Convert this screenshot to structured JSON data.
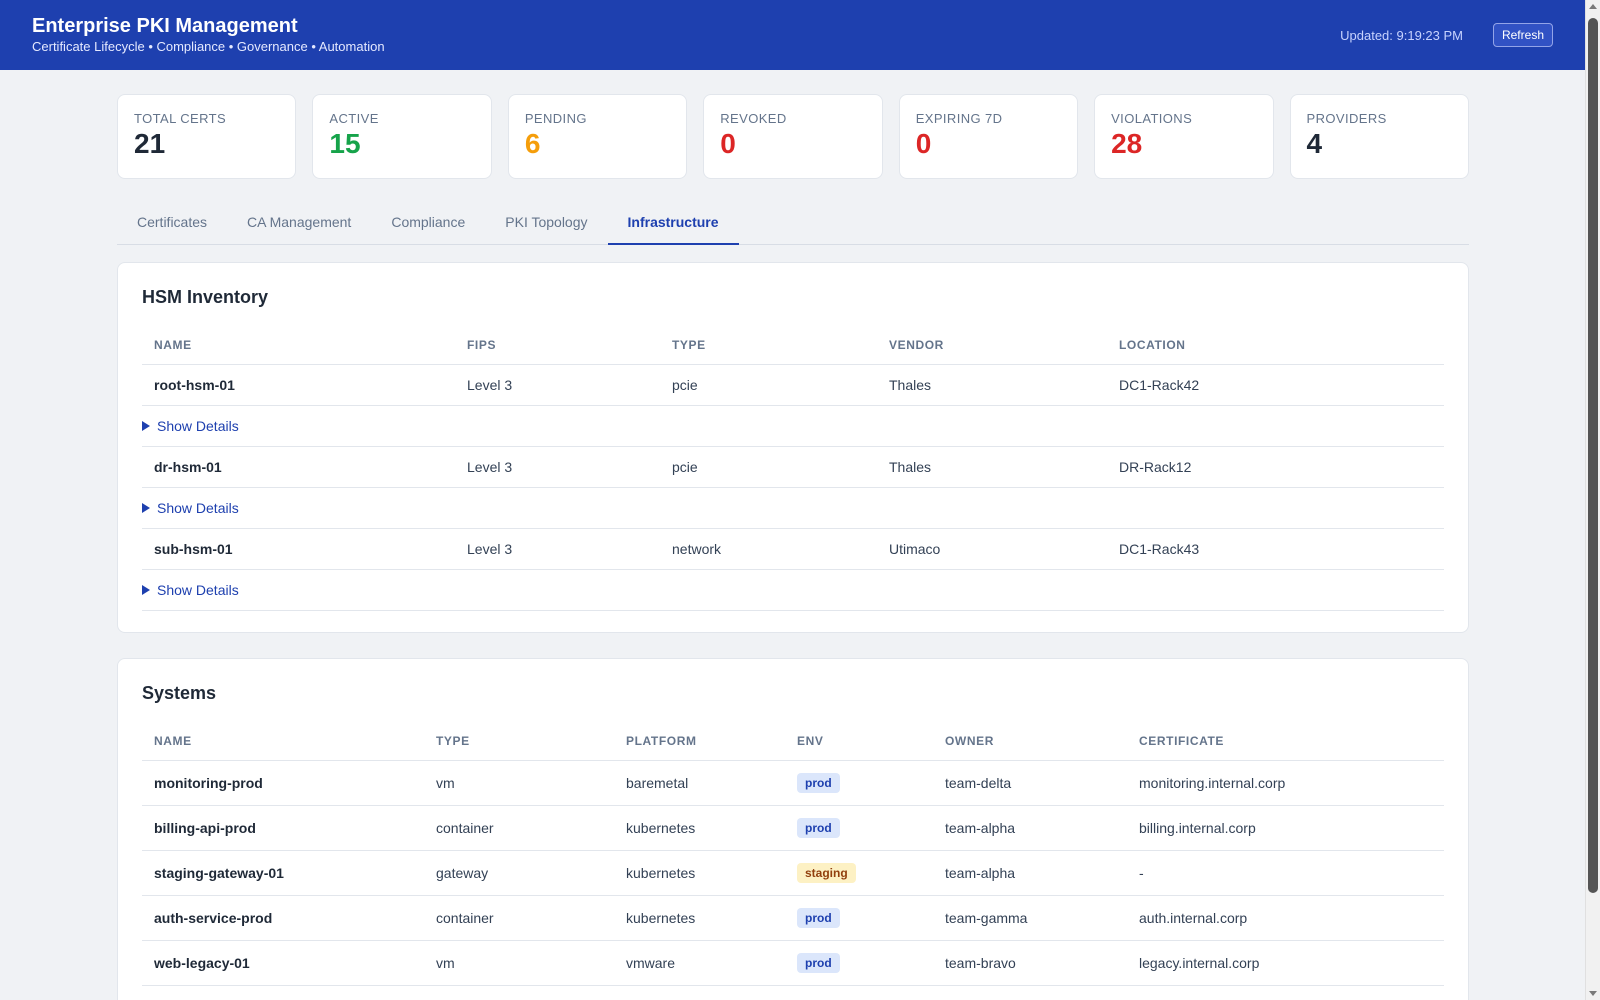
{
  "header": {
    "title": "Enterprise PKI Management",
    "subtitle": "Certificate Lifecycle • Compliance • Governance • Automation",
    "updated": "Updated: 9:19:23 PM",
    "refresh_label": "Refresh"
  },
  "stats": [
    {
      "label": "TOTAL CERTS",
      "value": "21",
      "color": "#1f2937"
    },
    {
      "label": "ACTIVE",
      "value": "15",
      "color": "#16a34a"
    },
    {
      "label": "PENDING",
      "value": "6",
      "color": "#f59e0b"
    },
    {
      "label": "REVOKED",
      "value": "0",
      "color": "#dc2626"
    },
    {
      "label": "EXPIRING 7D",
      "value": "0",
      "color": "#dc2626"
    },
    {
      "label": "VIOLATIONS",
      "value": "28",
      "color": "#dc2626"
    },
    {
      "label": "PROVIDERS",
      "value": "4",
      "color": "#1f2937"
    }
  ],
  "tabs": [
    {
      "label": "Certificates",
      "active": false
    },
    {
      "label": "CA Management",
      "active": false
    },
    {
      "label": "Compliance",
      "active": false
    },
    {
      "label": "PKI Topology",
      "active": false
    },
    {
      "label": "Infrastructure",
      "active": true
    }
  ],
  "hsm": {
    "title": "HSM Inventory",
    "columns": [
      "NAME",
      "FIPS",
      "TYPE",
      "VENDOR",
      "LOCATION"
    ],
    "details_label": "Show Details",
    "rows": [
      {
        "name": "root-hsm-01",
        "fips": "Level 3",
        "type": "pcie",
        "vendor": "Thales",
        "location": "DC1-Rack42"
      },
      {
        "name": "dr-hsm-01",
        "fips": "Level 3",
        "type": "pcie",
        "vendor": "Thales",
        "location": "DR-Rack12"
      },
      {
        "name": "sub-hsm-01",
        "fips": "Level 3",
        "type": "network",
        "vendor": "Utimaco",
        "location": "DC1-Rack43"
      }
    ]
  },
  "systems": {
    "title": "Systems",
    "columns": [
      "NAME",
      "TYPE",
      "PLATFORM",
      "ENV",
      "OWNER",
      "CERTIFICATE"
    ],
    "rows": [
      {
        "name": "monitoring-prod",
        "type": "vm",
        "platform": "baremetal",
        "env": "prod",
        "owner": "team-delta",
        "certificate": "monitoring.internal.corp"
      },
      {
        "name": "billing-api-prod",
        "type": "container",
        "platform": "kubernetes",
        "env": "prod",
        "owner": "team-alpha",
        "certificate": "billing.internal.corp"
      },
      {
        "name": "staging-gateway-01",
        "type": "gateway",
        "platform": "kubernetes",
        "env": "staging",
        "owner": "team-alpha",
        "certificate": "-"
      },
      {
        "name": "auth-service-prod",
        "type": "container",
        "platform": "kubernetes",
        "env": "prod",
        "owner": "team-gamma",
        "certificate": "auth.internal.corp"
      },
      {
        "name": "web-legacy-01",
        "type": "vm",
        "platform": "vmware",
        "env": "prod",
        "owner": "team-bravo",
        "certificate": "legacy.internal.corp"
      }
    ]
  },
  "colors": {
    "brand": "#1e40af",
    "background": "#f0f2f5"
  }
}
